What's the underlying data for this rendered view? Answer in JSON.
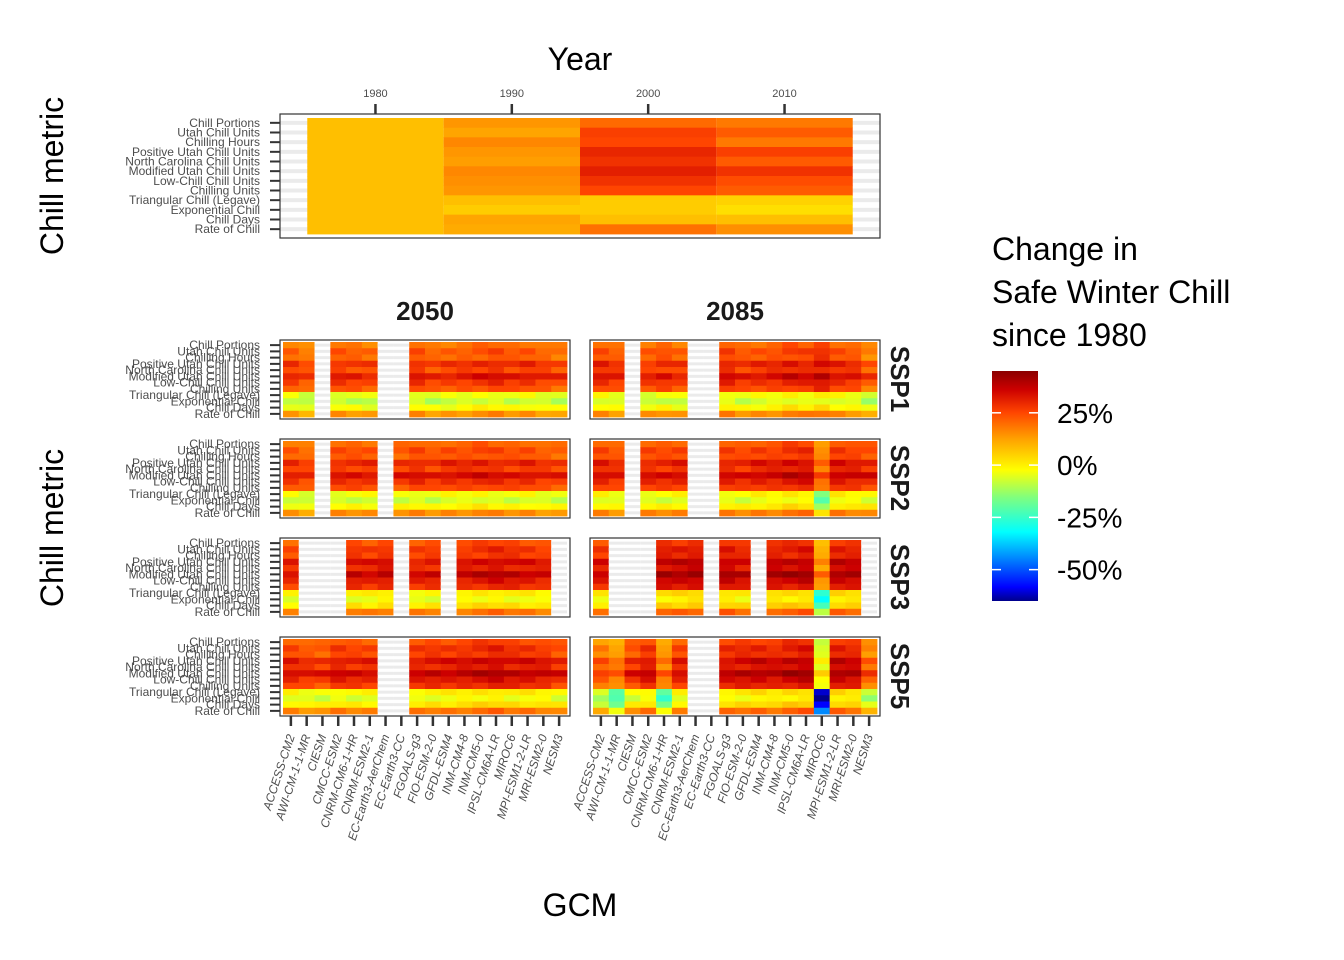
{
  "chart_data": {
    "type": "heatmap",
    "colors": {
      "na_tile": "#ebebeb",
      "scale": [
        "#00008b",
        "#0000ff",
        "#00bfff",
        "#00ffff",
        "#7fff7f",
        "#ffff00",
        "#ffa500",
        "#ff4500",
        "#cc0000",
        "#8b0000"
      ]
    },
    "legend": {
      "title_lines": [
        "Change in",
        "Safe Winter Chill",
        "since 1980"
      ],
      "tick_labels": [
        "25%",
        "0%",
        "-25%",
        "-50%"
      ],
      "tick_values": [
        25,
        0,
        -25,
        -50
      ],
      "limits": [
        -65,
        45
      ]
    },
    "metrics": [
      "Chill Portions",
      "Utah Chill Units",
      "Chilling Hours",
      "Positive Utah Chill Units",
      "North Carolina Chill Units",
      "Modified Utah Chill Units",
      "Low-Chill Chill Units",
      "Chilling Units",
      "Triangular Chill (Legave)",
      "Exponential Chill",
      "Chill Days",
      "Rate of Chill"
    ],
    "top_panel": {
      "xlabel": "Year",
      "ylabel": "Chill metric",
      "x_ticks": [
        1980,
        1990,
        2000,
        2010
      ],
      "xlim": [
        1973,
        2017
      ],
      "periods": [
        {
          "start": 1975,
          "end": 1985,
          "values": [
            8,
            8,
            8,
            8,
            8,
            8,
            8,
            8,
            8,
            8,
            8,
            8
          ]
        },
        {
          "start": 1985,
          "end": 1995,
          "values": [
            14,
            12,
            16,
            14,
            13,
            16,
            15,
            14,
            8,
            6,
            12,
            11
          ]
        },
        {
          "start": 1995,
          "end": 2005,
          "values": [
            20,
            26,
            25,
            30,
            28,
            31,
            28,
            25,
            6,
            6,
            8,
            19
          ]
        },
        {
          "start": 2005,
          "end": 2015,
          "values": [
            18,
            22,
            18,
            26,
            22,
            28,
            24,
            22,
            5,
            3,
            8,
            15
          ]
        }
      ]
    },
    "bottom": {
      "xlabel": "GCM",
      "ylabel": "Chill metric",
      "columns": [
        "2050",
        "2085"
      ],
      "rows": [
        "SSP1",
        "SSP2",
        "SSP3",
        "SSP5"
      ],
      "gcms": [
        "ACCESS-CM2",
        "AWI-CM-1-1-MR",
        "CIESM",
        "CMCC-ESM2",
        "CNRM-CM6-1-HR",
        "CNRM-ESM2-1",
        "EC-Earth3-AerChem",
        "EC-Earth3-CC",
        "FGOALS-g3",
        "FIO-ESM-2-0",
        "GFDL-ESM4",
        "INM-CM4-8",
        "INM-CM5-0",
        "IPSL-CM6A-LR",
        "MIROC6",
        "MPI-ESM1-2-LR",
        "MRI-ESM2-0",
        "NESM3"
      ],
      "base_profile": [
        16,
        20,
        18,
        26,
        22,
        30,
        24,
        20,
        -6,
        -10,
        -4,
        12
      ],
      "panels": [
        {
          "row": "SSP1",
          "year": "2050",
          "missing": [
            2,
            6,
            7
          ],
          "gcm_offsets": [
            2,
            -1,
            0,
            3,
            2,
            1,
            0,
            0,
            4,
            1,
            2,
            3,
            4,
            5,
            3,
            4,
            2,
            0
          ]
        },
        {
          "row": "SSP1",
          "year": "2085",
          "missing": [
            2,
            6,
            7
          ],
          "gcm_offsets": [
            5,
            3,
            0,
            2,
            4,
            2,
            0,
            0,
            6,
            3,
            4,
            5,
            7,
            6,
            9,
            5,
            4,
            -2
          ]
        },
        {
          "row": "SSP2",
          "year": "2050",
          "missing": [
            2,
            6
          ],
          "gcm_offsets": [
            3,
            1,
            0,
            4,
            4,
            4,
            0,
            3,
            5,
            3,
            5,
            5,
            6,
            5,
            4,
            5,
            3,
            2
          ]
        },
        {
          "row": "SSP2",
          "year": "2085",
          "missing": [
            2,
            6,
            7
          ],
          "gcm_offsets": [
            6,
            4,
            0,
            5,
            5,
            6,
            0,
            0,
            6,
            5,
            7,
            7,
            9,
            9,
            -4,
            8,
            7,
            5
          ]
        },
        {
          "row": "SSP3",
          "year": "2050",
          "missing": [
            1,
            2,
            3,
            7,
            10,
            17
          ],
          "gcm_offsets": [
            5,
            0,
            0,
            0,
            8,
            7,
            9,
            0,
            6,
            7,
            0,
            8,
            9,
            10,
            9,
            8,
            7,
            0
          ]
        },
        {
          "row": "SSP3",
          "year": "2085",
          "missing": [
            1,
            2,
            3,
            7,
            10,
            17
          ],
          "gcm_offsets": [
            8,
            0,
            0,
            0,
            12,
            12,
            13,
            0,
            12,
            10,
            0,
            12,
            12,
            13,
            -9,
            12,
            12,
            0
          ]
        },
        {
          "row": "SSP5",
          "year": "2050",
          "missing": [
            6,
            7
          ],
          "gcm_offsets": [
            6,
            4,
            3,
            7,
            6,
            6,
            0,
            0,
            7,
            8,
            8,
            9,
            10,
            11,
            9,
            9,
            8,
            5
          ]
        },
        {
          "row": "SSP5",
          "year": "2085",
          "missing": [
            6,
            7
          ],
          "gcm_offsets": [
            -2,
            -6,
            4,
            8,
            -6,
            6,
            0,
            0,
            9,
            10,
            11,
            10,
            12,
            13,
            -25,
            12,
            11,
            -3
          ]
        }
      ]
    }
  }
}
